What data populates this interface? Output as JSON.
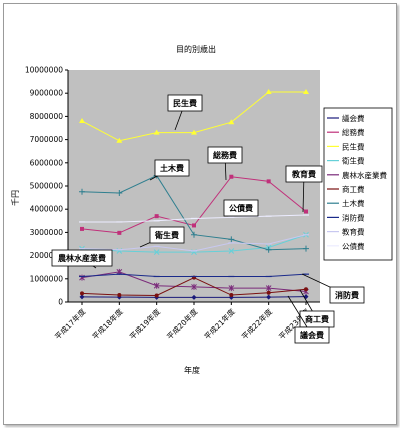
{
  "chart_data": {
    "type": "line",
    "title": "目的別歳出",
    "xlabel": "年度",
    "ylabel": "千円",
    "ylim": [
      0,
      10000000
    ],
    "yticks": [
      "0",
      "1000000",
      "2000000",
      "3000000",
      "4000000",
      "5000000",
      "6000000",
      "7000000",
      "8000000",
      "9000000",
      "10000000"
    ],
    "categories": [
      "平成17年度",
      "平成18年度",
      "平成19年度",
      "平成20年度",
      "平成21年度",
      "平成22年度",
      "平成23年度"
    ],
    "series": [
      {
        "name": "議会費",
        "color": "#1a1a7a",
        "marker": "diamond",
        "values": [
          220000,
          210000,
          200000,
          200000,
          200000,
          210000,
          230000
        ]
      },
      {
        "name": "総務費",
        "color": "#c0307a",
        "marker": "square",
        "values": [
          3150000,
          2980000,
          3700000,
          3300000,
          5400000,
          5200000,
          3900000
        ]
      },
      {
        "name": "民生費",
        "color": "#ffff33",
        "marker": "triangle",
        "values": [
          7800000,
          6950000,
          7300000,
          7300000,
          7750000,
          9050000,
          9050000
        ]
      },
      {
        "name": "衛生費",
        "color": "#66d0d8",
        "marker": "x",
        "values": [
          2300000,
          2200000,
          2150000,
          2150000,
          2200000,
          2350000,
          2900000
        ]
      },
      {
        "name": "農林水産業費",
        "color": "#7a2a7a",
        "marker": "xstar",
        "values": [
          1050000,
          1300000,
          700000,
          650000,
          600000,
          600000,
          450000
        ]
      },
      {
        "name": "商工費",
        "color": "#7a1010",
        "marker": "circle",
        "values": [
          370000,
          300000,
          280000,
          1050000,
          300000,
          400000,
          550000
        ]
      },
      {
        "name": "土木費",
        "color": "#2f7f8f",
        "marker": "plus",
        "values": [
          4750000,
          4700000,
          5450000,
          2900000,
          2700000,
          2250000,
          2300000
        ]
      },
      {
        "name": "消防費",
        "color": "#1a2a8a",
        "marker": "dash",
        "values": [
          1100000,
          1200000,
          1100000,
          1100000,
          1100000,
          1100000,
          1200000
        ]
      },
      {
        "name": "教育費",
        "color": "#c8c8f0",
        "marker": "dash",
        "values": [
          2300000,
          2250000,
          2400000,
          2200000,
          2550000,
          2500000,
          2900000
        ]
      },
      {
        "name": "公債費",
        "color": "#ececff",
        "marker": "dash",
        "values": [
          3450000,
          3450000,
          3500000,
          3600000,
          3650000,
          3700000,
          3750000
        ]
      }
    ],
    "callouts": [
      "民生費",
      "土木費",
      "総務費",
      "教育費",
      "公債費",
      "衛生費",
      "農林水産業費",
      "消防費",
      "商工費",
      "議会費"
    ],
    "grid": false,
    "legend_position": "right"
  }
}
